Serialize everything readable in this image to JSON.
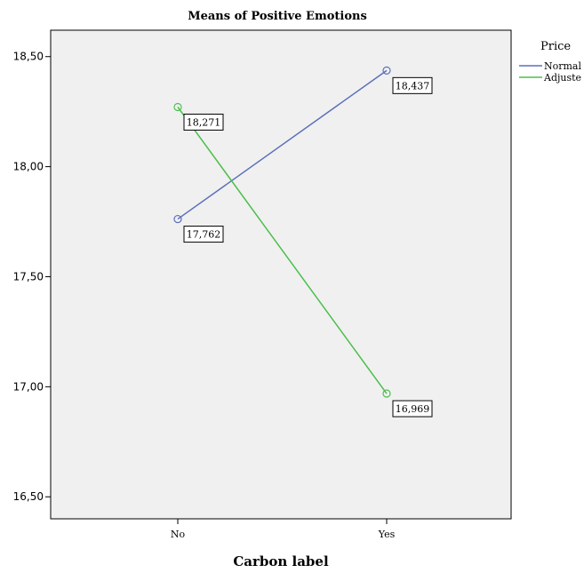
{
  "chart_data": {
    "type": "line",
    "title": "Means of Positive Emotions",
    "xlabel": "Carbon label",
    "ylabel": "",
    "categories": [
      "No",
      "Yes"
    ],
    "ylim": [
      16.4,
      18.62
    ],
    "yticks": [
      16.5,
      17.0,
      17.5,
      18.0,
      18.5
    ],
    "ytick_labels": [
      "16,50",
      "17,00",
      "17,50",
      "18,00",
      "18,50"
    ],
    "legend_title": "Price",
    "legend_position": "right",
    "grid": false,
    "plot_background": "#f0f0f0",
    "series": [
      {
        "name": "Normal",
        "color": "#5b6fbb",
        "values": [
          17.762,
          18.437
        ],
        "labels": [
          "17,762",
          "18,437"
        ]
      },
      {
        "name": "Adjuste",
        "color": "#4cbe4c",
        "values": [
          18.271,
          16.969
        ],
        "labels": [
          "18,271",
          "16,969"
        ]
      }
    ]
  }
}
